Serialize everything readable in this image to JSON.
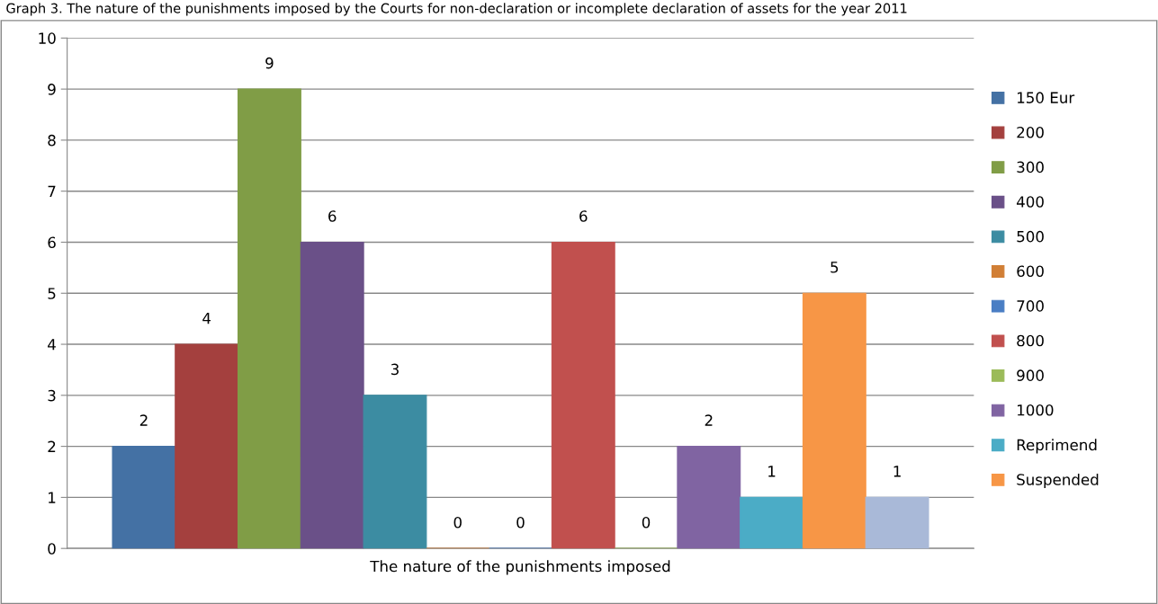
{
  "chart_data": {
    "type": "bar",
    "title": "Graph 3. The nature of the punishments imposed by the Courts for non-declaration or incomplete declaration of assets for the year 2011",
    "xlabel": "The nature of the punishments imposed",
    "categories": [
      null
    ],
    "series": [
      {
        "name": "150 Eur",
        "color": "#4471a4",
        "values": [
          2
        ]
      },
      {
        "name": "200",
        "color": "#a4403e",
        "values": [
          4
        ]
      },
      {
        "name": "300",
        "color": "#809d46",
        "values": [
          9
        ]
      },
      {
        "name": "400",
        "color": "#6a5088",
        "values": [
          6
        ]
      },
      {
        "name": "500",
        "color": "#3c8ca2",
        "values": [
          3
        ]
      },
      {
        "name": "600",
        "color": "#d17f36",
        "values": [
          0
        ]
      },
      {
        "name": "700",
        "color": "#4a7ec4",
        "values": [
          0
        ]
      },
      {
        "name": "800",
        "color": "#c1504e",
        "values": [
          6
        ]
      },
      {
        "name": "900",
        "color": "#9bbb59",
        "values": [
          0
        ]
      },
      {
        "name": "1000",
        "color": "#8064a2",
        "values": [
          2
        ]
      },
      {
        "name": "Reprimend",
        "color": "#4bacc6",
        "values": [
          1
        ]
      },
      {
        "name": "Suspended",
        "color": "#f79646",
        "values": [
          5
        ]
      },
      {
        "color": "#a9b9d8",
        "values": [
          1
        ]
      }
    ],
    "ylim": [
      0,
      10
    ],
    "yticks": [
      0,
      1,
      2,
      3,
      4,
      5,
      6,
      7,
      8,
      9,
      10
    ],
    "grid": "y",
    "legend": "right",
    "data_labels": true
  }
}
